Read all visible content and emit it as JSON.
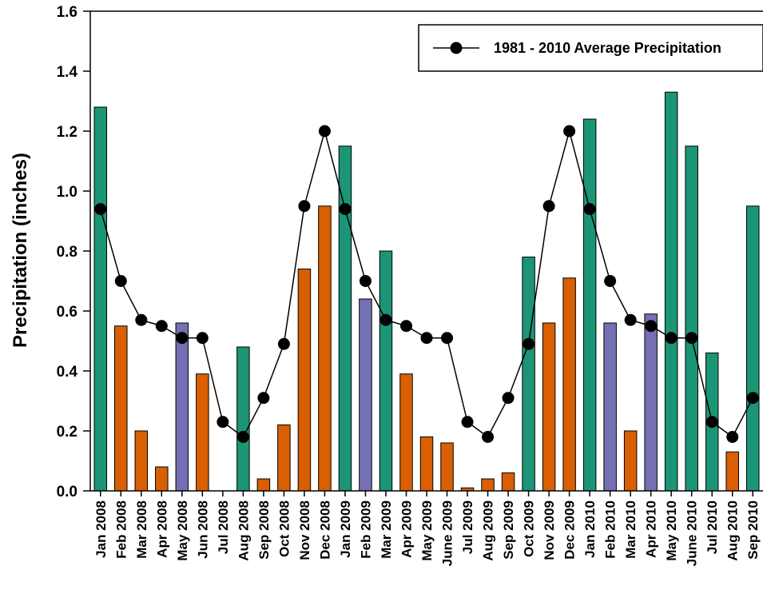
{
  "chart_data": {
    "type": "bar",
    "ylabel": "Precipitation (inches)",
    "xlabel": "",
    "ylim": [
      0,
      1.6
    ],
    "yticks": [
      "0.0",
      "0.2",
      "0.4",
      "0.6",
      "0.8",
      "1.0",
      "1.2",
      "1.4",
      "1.6"
    ],
    "grid": false,
    "legend_position": "top-right",
    "colors": {
      "green": "#1b9575",
      "orange": "#d95f02",
      "purple": "#7570b3",
      "line": "#000000"
    },
    "categories": [
      "Jan 2008",
      "Feb 2008",
      "Mar 2008",
      "Apr 2008",
      "May 2008",
      "Jun 2008",
      "Jul 2008",
      "Aug 2008",
      "Sep 2008",
      "Oct 2008",
      "Nov 2008",
      "Dec 2008",
      "Jan 2009",
      "Feb 2009",
      "Mar 2009",
      "Apr 2009",
      "May 2009",
      "June 2009",
      "Jul 2009",
      "Aug 2009",
      "Sep 2009",
      "Oct 2009",
      "Nov 2009",
      "Dec 2009",
      "Jan 2010",
      "Feb 2010",
      "Mar 2010",
      "Apr 2010",
      "May 2010",
      "June 2010",
      "Jul 2010",
      "Aug 2010",
      "Sep 2010"
    ],
    "bars": {
      "values": [
        1.28,
        0.55,
        0.2,
        0.08,
        0.56,
        0.39,
        0.0,
        0.48,
        0.04,
        0.22,
        0.74,
        0.95,
        1.15,
        0.64,
        0.8,
        0.39,
        0.18,
        0.16,
        0.01,
        0.04,
        0.06,
        0.78,
        0.56,
        0.71,
        1.24,
        0.56,
        0.2,
        0.59,
        1.33,
        1.15,
        0.46,
        0.13,
        0.95
      ],
      "color_keys": [
        "green",
        "orange",
        "orange",
        "orange",
        "purple",
        "orange",
        "orange",
        "green",
        "orange",
        "orange",
        "orange",
        "orange",
        "green",
        "purple",
        "green",
        "orange",
        "orange",
        "orange",
        "orange",
        "orange",
        "orange",
        "green",
        "orange",
        "orange",
        "green",
        "purple",
        "orange",
        "purple",
        "green",
        "green",
        "green",
        "orange",
        "green"
      ]
    },
    "series": [
      {
        "name": "1981 - 2010 Average Precipitation",
        "type": "line",
        "values": [
          0.94,
          0.7,
          0.57,
          0.55,
          0.51,
          0.51,
          0.23,
          0.18,
          0.31,
          0.49,
          0.95,
          1.2,
          0.94,
          0.7,
          0.57,
          0.55,
          0.51,
          0.51,
          0.23,
          0.18,
          0.31,
          0.49,
          0.95,
          1.2,
          0.94,
          0.7,
          0.57,
          0.55,
          0.51,
          0.51,
          0.23,
          0.18,
          0.31
        ]
      }
    ]
  }
}
